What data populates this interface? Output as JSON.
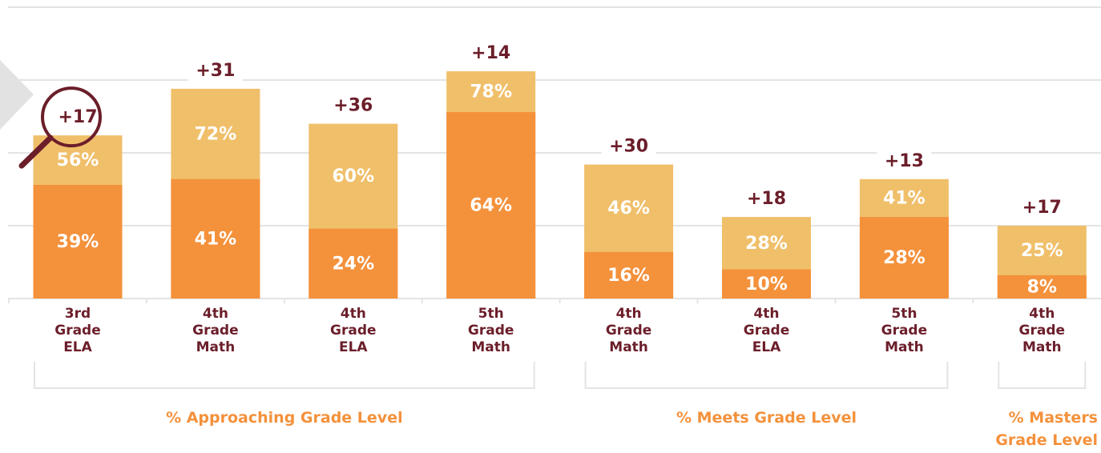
{
  "chart_data": {
    "type": "bar",
    "categories": [
      "3rd Grade ELA",
      "4th Grade Math",
      "4th Grade ELA",
      "5th Grade Math",
      "4th Grade Math",
      "4th Grade ELA",
      "5th Grade Math",
      "4th Grade Math"
    ],
    "series": [
      {
        "color": "#f0bf6a",
        "values": [
          56,
          72,
          60,
          78,
          46,
          28,
          41,
          25
        ],
        "value_labels": [
          "56%",
          "72%",
          "60%",
          "78%",
          "46%",
          "28%",
          "41%",
          "25%"
        ]
      },
      {
        "color": "#f4913b",
        "values": [
          39,
          41,
          24,
          64,
          16,
          10,
          28,
          8
        ],
        "value_labels": [
          "39%",
          "41%",
          "24%",
          "64%",
          "16%",
          "10%",
          "28%",
          "8%"
        ]
      }
    ],
    "annotations": [
      "+17",
      "+31",
      "+36",
      "+14",
      "+30",
      "+18",
      "+13",
      "+17"
    ],
    "groups": [
      "% Approaching Grade Level",
      "% Meets Grade Level",
      "% Masters Grade Level"
    ],
    "ylim": [
      0,
      100
    ],
    "yticks": [
      0,
      25,
      50,
      75,
      100
    ],
    "grid": true
  }
}
